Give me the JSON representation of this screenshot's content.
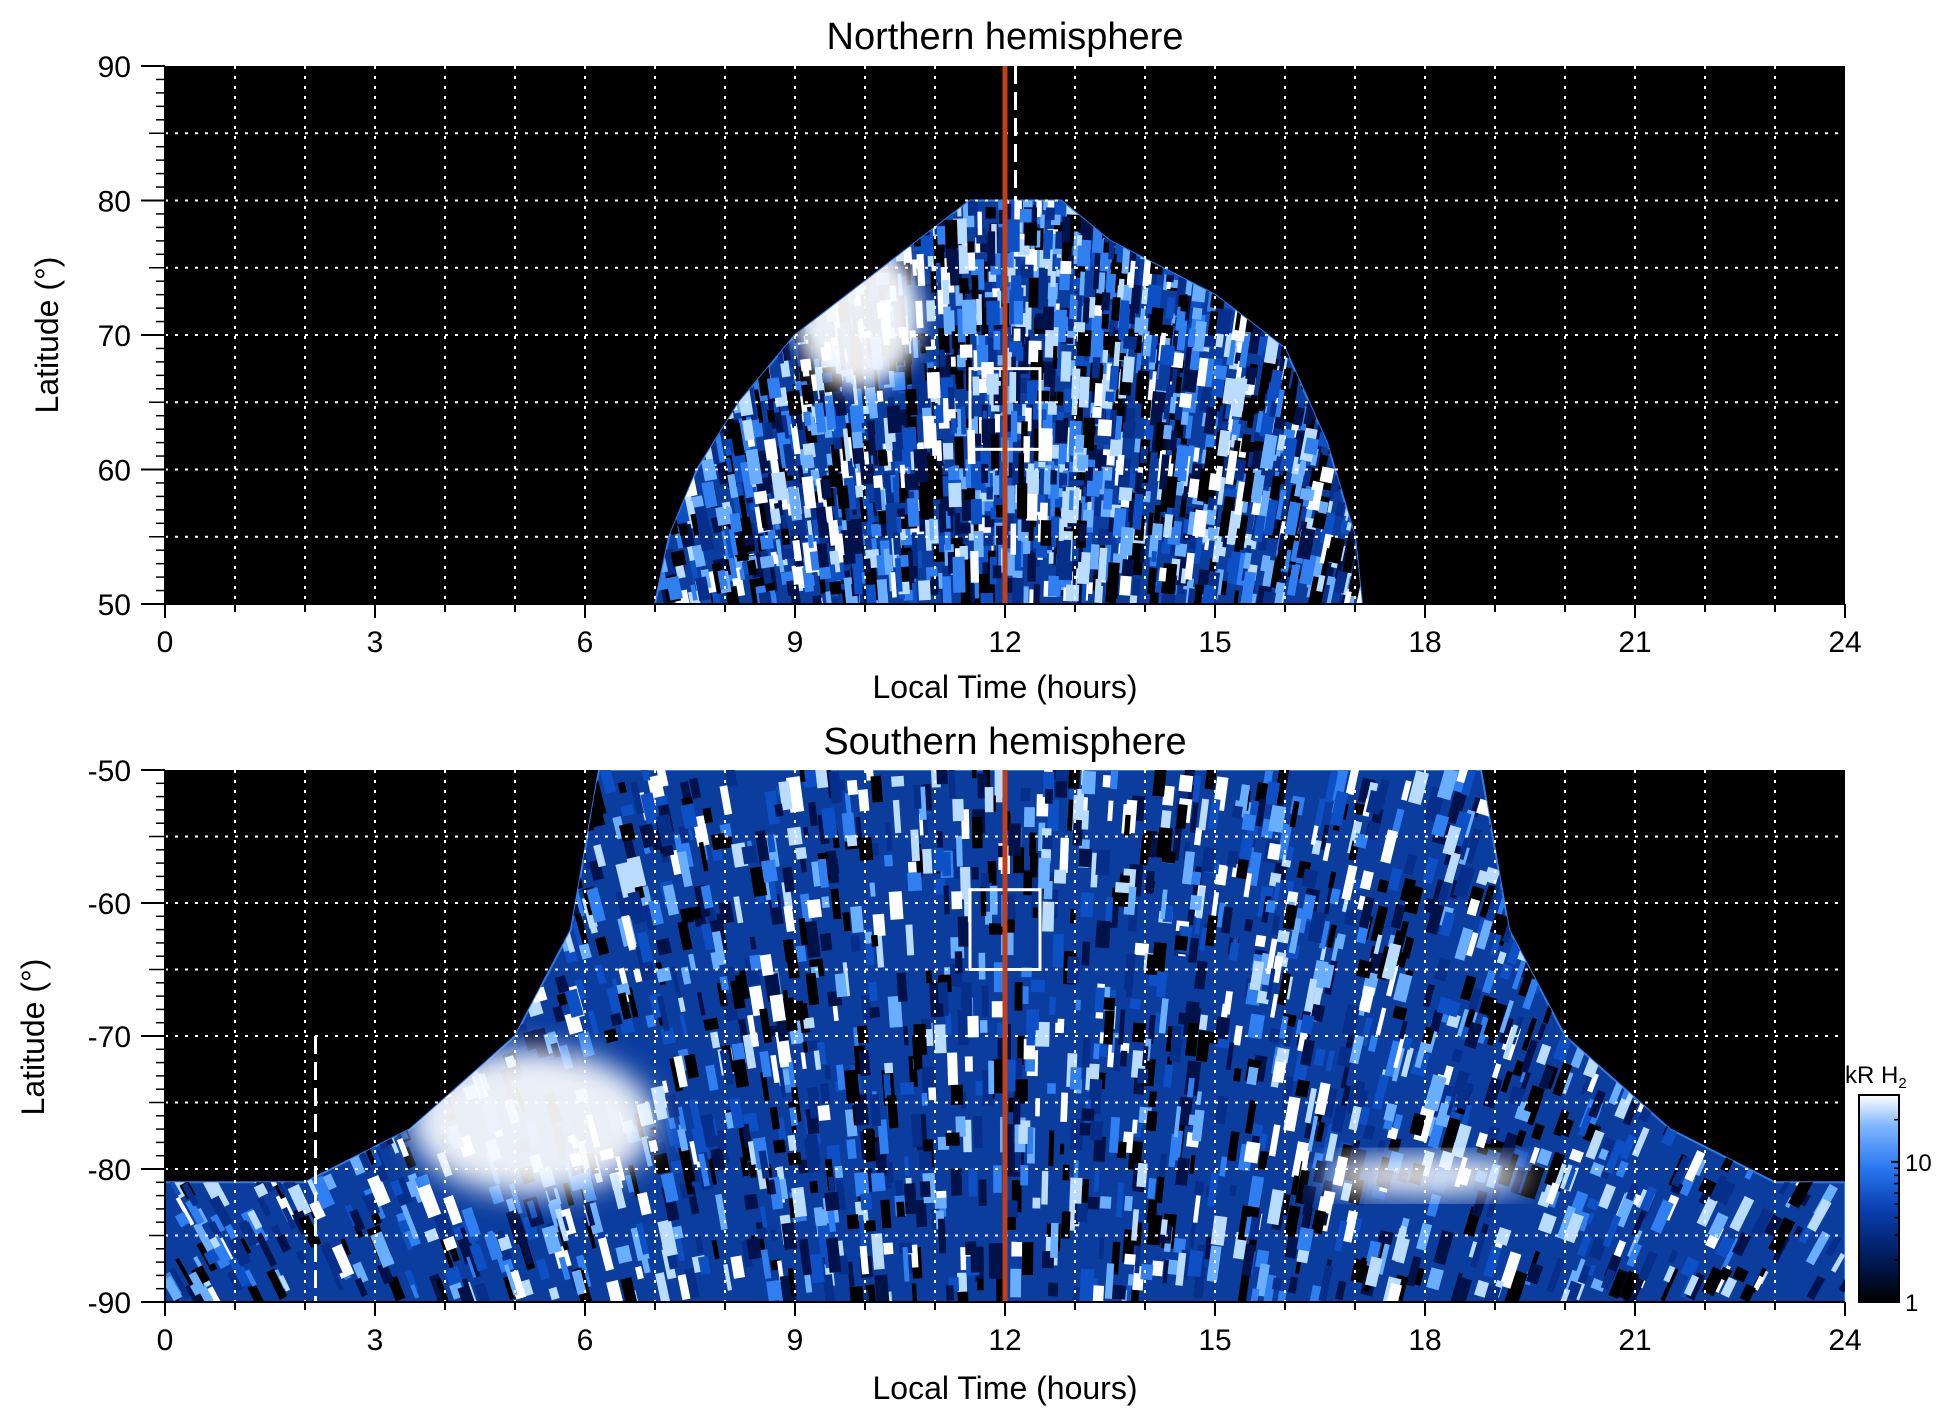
{
  "chart_data": [
    {
      "type": "heatmap",
      "title": "Northern hemisphere",
      "xlabel": "Local Time (hours)",
      "ylabel": "Latitude (°)",
      "xlim": [
        0,
        24
      ],
      "ylim": [
        50,
        90
      ],
      "xticks": [
        0,
        3,
        6,
        9,
        12,
        15,
        18,
        21,
        24
      ],
      "yticks": [
        50,
        60,
        70,
        80,
        90
      ],
      "x_gridlines_hours": [
        1,
        2,
        3,
        4,
        5,
        6,
        7,
        8,
        9,
        10,
        11,
        12,
        13,
        14,
        15,
        16,
        17,
        18,
        19,
        20,
        21,
        22,
        23
      ],
      "y_gridlines_deg": [
        55,
        60,
        65,
        70,
        75,
        80,
        85
      ],
      "grid": true,
      "background_color": "#000000",
      "coverage": {
        "description": "observed emission region",
        "boundary_lt_lat": [
          [
            7.0,
            50
          ],
          [
            7.2,
            55
          ],
          [
            7.6,
            60
          ],
          [
            8.2,
            65
          ],
          [
            9.0,
            70
          ],
          [
            10.0,
            74
          ],
          [
            11.0,
            78
          ],
          [
            11.5,
            80
          ],
          [
            12.8,
            80
          ],
          [
            13.5,
            77
          ],
          [
            15.0,
            73
          ],
          [
            16.0,
            69
          ],
          [
            16.6,
            62
          ],
          [
            17.0,
            55
          ],
          [
            17.1,
            50
          ]
        ]
      },
      "bright_regions": [
        {
          "lt_range": [
            9.0,
            10.8
          ],
          "lat_range": [
            66,
            77
          ],
          "intensity_kR": 25
        }
      ],
      "highlight_box": {
        "lt_range": [
          11.5,
          12.5
        ],
        "lat_range": [
          61.5,
          67.5
        ],
        "color": "#ffffff"
      },
      "noon_line": {
        "lt": 12,
        "color": "#c0401a"
      },
      "dashed_line": {
        "lt": 12.15,
        "lat_range": [
          80,
          90
        ],
        "color": "#ffffff"
      }
    },
    {
      "type": "heatmap",
      "title": "Southern hemisphere",
      "xlabel": "Local Time (hours)",
      "ylabel": "Latitude (°)",
      "xlim": [
        0,
        24
      ],
      "ylim": [
        -90,
        -50
      ],
      "xticks": [
        0,
        3,
        6,
        9,
        12,
        15,
        18,
        21,
        24
      ],
      "yticks": [
        -90,
        -80,
        -70,
        -60,
        -50
      ],
      "x_gridlines_hours": [
        1,
        2,
        3,
        4,
        5,
        6,
        7,
        8,
        9,
        10,
        11,
        12,
        13,
        14,
        15,
        16,
        17,
        18,
        19,
        20,
        21,
        22,
        23
      ],
      "y_gridlines_deg": [
        -55,
        -60,
        -65,
        -70,
        -75,
        -80,
        -85
      ],
      "grid": true,
      "background_color": "#000000",
      "coverage": {
        "description": "observed emission region",
        "boundary_lt_lat": [
          [
            0,
            -81
          ],
          [
            2,
            -81
          ],
          [
            3.5,
            -77
          ],
          [
            5,
            -70
          ],
          [
            5.8,
            -62
          ],
          [
            6.2,
            -50
          ],
          [
            18.8,
            -50
          ],
          [
            19.2,
            -62
          ],
          [
            20,
            -70
          ],
          [
            21.5,
            -77
          ],
          [
            23,
            -81
          ],
          [
            24,
            -81
          ],
          [
            24,
            -90
          ],
          [
            0,
            -90
          ]
        ]
      },
      "bright_regions": [
        {
          "lt_range": [
            3.5,
            7.0
          ],
          "lat_range": [
            -82,
            -71
          ],
          "intensity_kR": 25
        },
        {
          "lt_range": [
            16.5,
            19.5
          ],
          "lat_range": [
            -82,
            -79
          ],
          "intensity_kR": 20
        }
      ],
      "highlight_box": {
        "lt_range": [
          11.5,
          12.5
        ],
        "lat_range": [
          -65,
          -59
        ],
        "color": "#ffffff"
      },
      "noon_line": {
        "lt": 12,
        "color": "#c0401a"
      },
      "dashed_line": {
        "lt": 2.15,
        "lat_range": [
          -90,
          -70
        ],
        "color": "#ffffff"
      }
    }
  ],
  "colorbar": {
    "label": "kR H",
    "label_subscript": "2",
    "scale": "log",
    "range": [
      1,
      30
    ],
    "ticks": [
      {
        "value": 1,
        "label": "1"
      },
      {
        "value": 10,
        "label": "10"
      }
    ],
    "colors": [
      "#000000",
      "#001a55",
      "#0a3fb0",
      "#2a78f0",
      "#7fb6ff",
      "#ffffff"
    ]
  }
}
